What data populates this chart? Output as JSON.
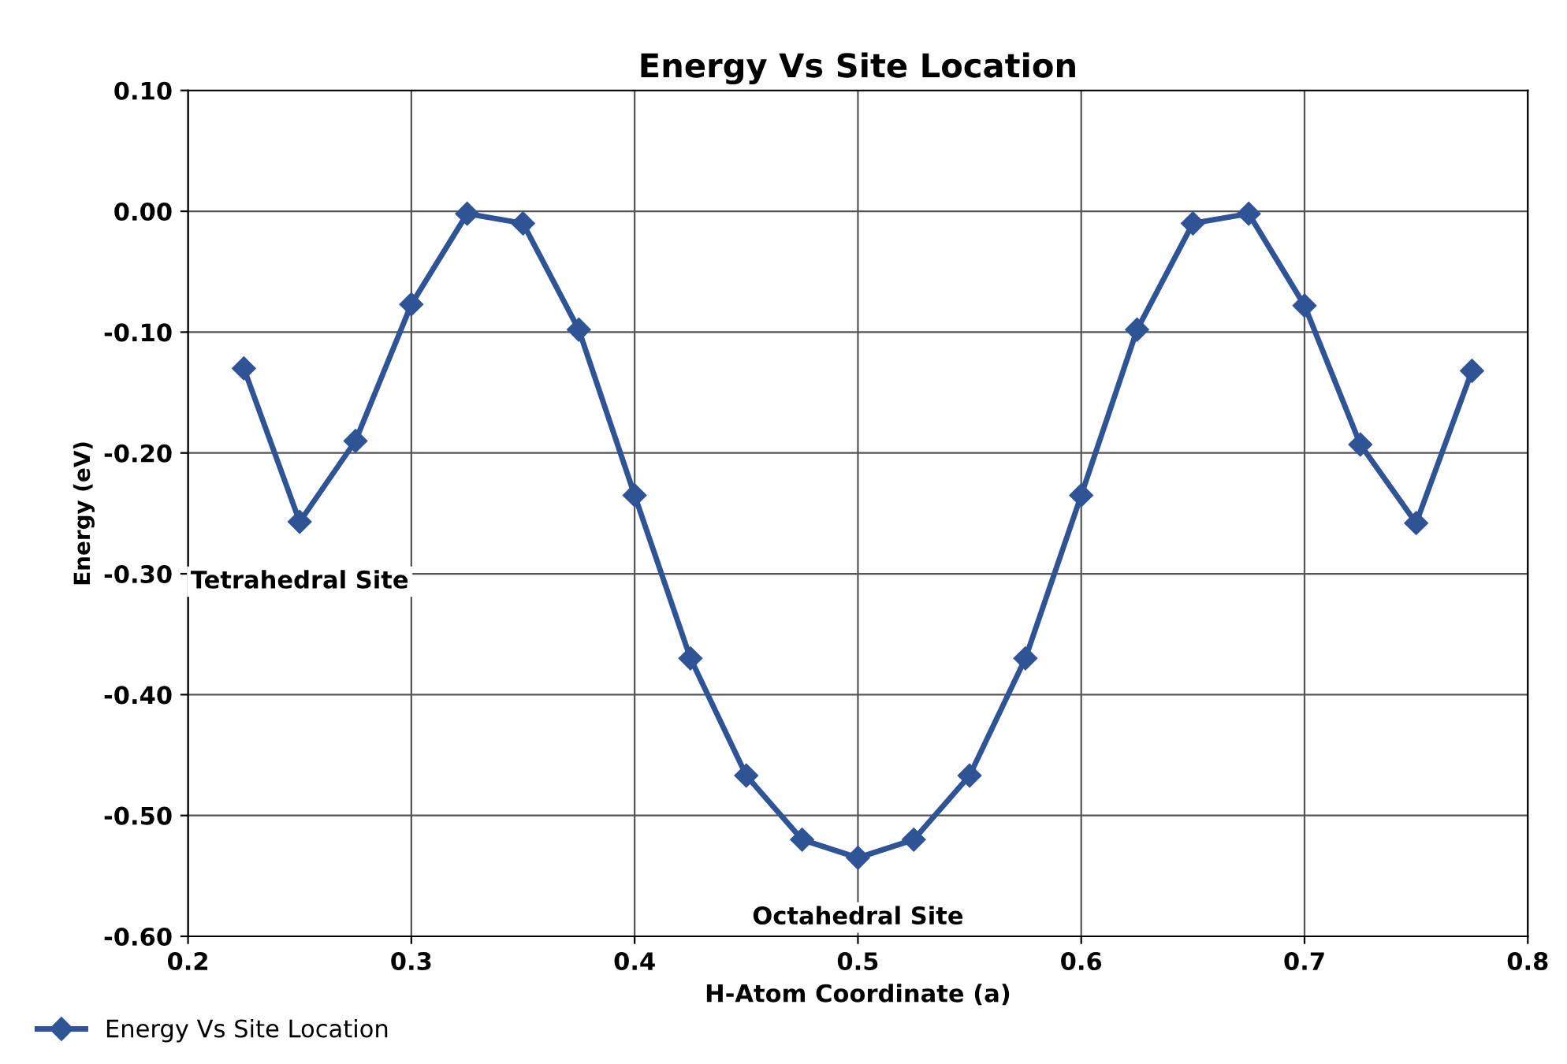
{
  "chart_data": {
    "type": "line",
    "title": "Energy Vs Site Location",
    "xlabel": "H-Atom Coordinate (a)",
    "ylabel": "Energy (eV)",
    "x": [
      0.225,
      0.25,
      0.275,
      0.3,
      0.325,
      0.35,
      0.375,
      0.4,
      0.425,
      0.45,
      0.475,
      0.5,
      0.525,
      0.55,
      0.575,
      0.6,
      0.625,
      0.65,
      0.675,
      0.7,
      0.725,
      0.75,
      0.775
    ],
    "series": [
      {
        "name": "Energy Vs Site Location",
        "color": "#2f5496",
        "values": [
          -0.13,
          -0.257,
          -0.19,
          -0.077,
          -0.002,
          -0.01,
          -0.098,
          -0.235,
          -0.37,
          -0.467,
          -0.52,
          -0.535,
          -0.52,
          -0.467,
          -0.37,
          -0.235,
          -0.098,
          -0.01,
          -0.002,
          -0.078,
          -0.193,
          -0.258,
          -0.132
        ]
      }
    ],
    "xlim": [
      0.2,
      0.8
    ],
    "xticks": [
      0.2,
      0.3,
      0.4,
      0.5,
      0.6,
      0.7,
      0.8
    ],
    "ylim": [
      -0.6,
      0.1
    ],
    "yticks": [
      {
        "value": -0.6,
        "label": "-0.60"
      },
      {
        "value": -0.5,
        "label": "-0.50"
      },
      {
        "value": -0.4,
        "label": "-0.40"
      },
      {
        "value": -0.3,
        "label": "-0.30"
      },
      {
        "value": -0.2,
        "label": "-0.20"
      },
      {
        "value": -0.1,
        "label": "-0.10"
      },
      {
        "value": 0.0,
        "label": "0.00"
      },
      {
        "value": 0.1,
        "label": "0.10"
      }
    ],
    "annotations": [
      {
        "text": "Tetrahedral Site",
        "x": 0.25,
        "y": -0.257
      },
      {
        "text": "Octahedral Site",
        "x": 0.5,
        "y": -0.535
      }
    ],
    "grid": true,
    "legend": "bottom left",
    "marker": "diamond",
    "line_style": "solid"
  }
}
